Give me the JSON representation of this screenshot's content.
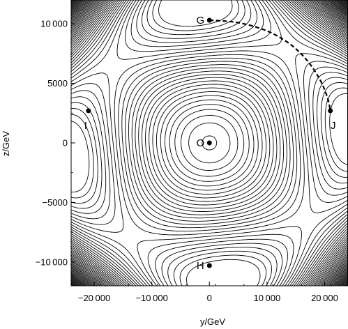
{
  "chart_data": {
    "type": "contour",
    "title": "",
    "xlabel": "y/GeV",
    "ylabel": "z/GeV",
    "xlim": [
      -24000,
      24000
    ],
    "ylim": [
      -12000,
      12000
    ],
    "x_ticks": [
      {
        "value": -20000,
        "label": "−20 000"
      },
      {
        "value": -10000,
        "label": "−10 000"
      },
      {
        "value": 0,
        "label": "0"
      },
      {
        "value": 10000,
        "label": "10 000"
      },
      {
        "value": 20000,
        "label": "20 000"
      }
    ],
    "y_ticks": [
      {
        "value": 10000,
        "label": "10 000"
      },
      {
        "value": 5000,
        "label": "5000"
      },
      {
        "value": 0,
        "label": "0"
      },
      {
        "value": -5000,
        "label": "−5000"
      },
      {
        "value": -10000,
        "label": "−10 000"
      }
    ],
    "points": [
      {
        "name": "G",
        "x": 0,
        "y": 10300,
        "label_side": "left"
      },
      {
        "name": "I",
        "x": -21000,
        "y": 2700,
        "label_side": "below-left"
      },
      {
        "name": "J",
        "x": 21000,
        "y": 2700,
        "label_side": "below-right"
      },
      {
        "name": "O",
        "x": 0,
        "y": 0,
        "label_side": "left"
      },
      {
        "name": "H",
        "x": 0,
        "y": -10300,
        "label_side": "left"
      }
    ],
    "path": {
      "style": "dashed",
      "from": "G",
      "to": "J",
      "x": [
        0,
        5000,
        10000,
        14000,
        17000,
        19200,
        20500,
        21000
      ],
      "y": [
        10300,
        10100,
        9400,
        8300,
        6900,
        5300,
        3800,
        2700
      ]
    },
    "line_color": "#000000",
    "background_color": "#ffffff"
  }
}
